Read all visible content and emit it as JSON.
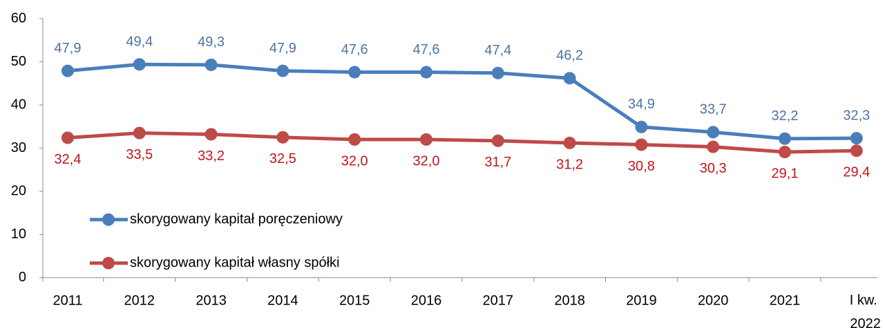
{
  "chart_data": {
    "type": "line",
    "categories": [
      "2011",
      "2012",
      "2013",
      "2014",
      "2015",
      "2016",
      "2017",
      "2018",
      "2019",
      "2020",
      "2021",
      "I kw. 2022"
    ],
    "series": [
      {
        "name": "skorygowany kapitał poręczeniowy",
        "color": "#4a7ebb",
        "label_color": "#4f71a6",
        "values": [
          47.9,
          49.4,
          49.3,
          47.9,
          47.6,
          47.6,
          47.4,
          46.2,
          34.9,
          33.7,
          32.2,
          32.3
        ],
        "value_labels": [
          "47,9",
          "49,4",
          "49,3",
          "47,9",
          "47,6",
          "47,6",
          "47,4",
          "46,2",
          "34,9",
          "33,7",
          "32,2",
          "32,3"
        ]
      },
      {
        "name": "skorygowany kapitał własny spółki",
        "color": "#be4b48",
        "label_color": "#c0141c",
        "values": [
          32.4,
          33.5,
          33.2,
          32.5,
          32.0,
          32.0,
          31.7,
          31.2,
          30.8,
          30.3,
          29.1,
          29.4
        ],
        "value_labels": [
          "32,4",
          "33,5",
          "33,2",
          "32,5",
          "32,0",
          "32,0",
          "31,7",
          "31,2",
          "30,8",
          "30,3",
          "29,1",
          "29,4"
        ]
      }
    ],
    "ylim": [
      0,
      60
    ],
    "yticks": [
      0,
      10,
      20,
      30,
      40,
      50,
      60
    ],
    "legend": "lower left"
  }
}
